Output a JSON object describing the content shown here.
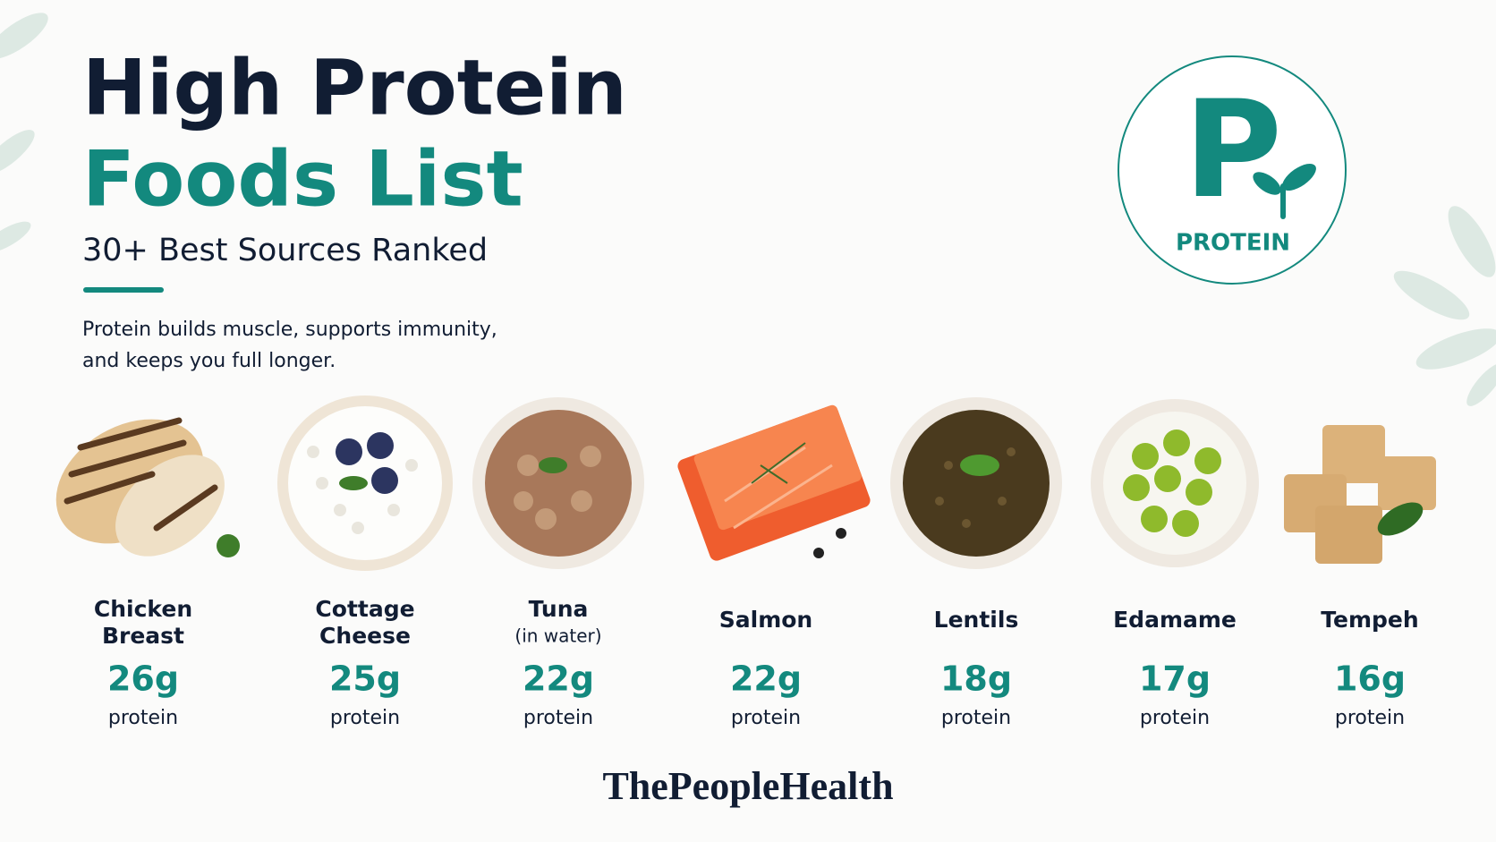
{
  "header": {
    "title": [
      "High Protein",
      "Foods List"
    ],
    "subtitle": "30+ Best Sources Ranked",
    "intro": [
      "Protein builds muscle, supports immunity,",
      "and keeps you full longer."
    ]
  },
  "badge": {
    "letter": "P",
    "label": "PROTEIN"
  },
  "foods": [
    {
      "name": [
        "Chicken",
        "Breast"
      ],
      "amount": "26g",
      "unit": "protein"
    },
    {
      "name": [
        "Cottage",
        "Cheese"
      ],
      "amount": "25g",
      "unit": "protein"
    },
    {
      "name": [
        "Tuna"
      ],
      "note": "(in water)",
      "amount": "22g",
      "unit": "protein"
    },
    {
      "name": [
        "Salmon"
      ],
      "amount": "22g",
      "unit": "protein"
    },
    {
      "name": [
        "Lentils"
      ],
      "amount": "18g",
      "unit": "protein"
    },
    {
      "name": [
        "Edamame"
      ],
      "amount": "17g",
      "unit": "protein"
    },
    {
      "name": [
        "Tempeh"
      ],
      "amount": "16g",
      "unit": "protein"
    }
  ],
  "footer": {
    "brand": "ThePeopleHealth"
  }
}
